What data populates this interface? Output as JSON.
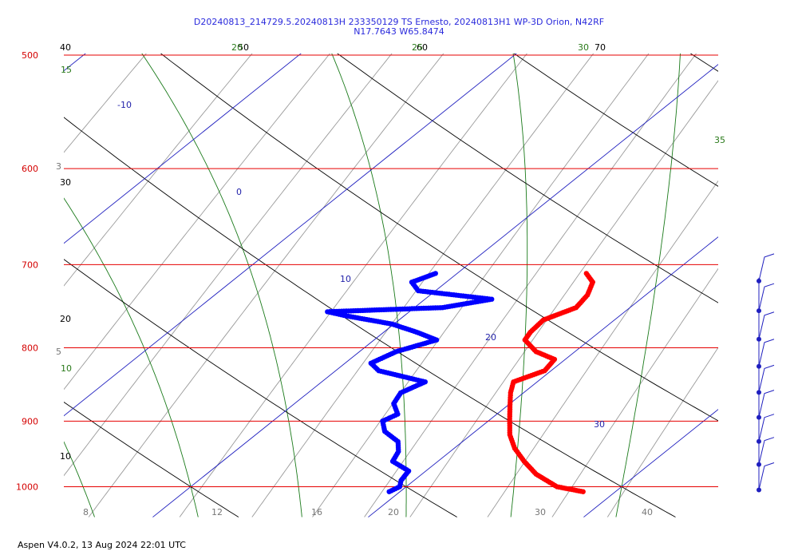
{
  "header": {
    "line1": "D20240813_214729.5.20240813H 233350129 TS Ernesto, 20240813H1 WP-3D Orion, N42RF",
    "line2": "N17.7643 W65.8474"
  },
  "footer": {
    "text": "Aspen V4.0.2, 13 Aug 2024  22:01 UTC"
  },
  "colors": {
    "temperature": "#ff0000",
    "dewpoint": "#0000ff",
    "isobar": "#e60000",
    "isotherm": "#1f1fbf",
    "dry_adiabat": "#000000",
    "moist_adiabat": "#1a7a1a",
    "mixing_ratio": "#9a9a9a",
    "wind_barb": "#1f1fbf"
  },
  "chart_data": {
    "type": "skew-t",
    "pressure_levels": [
      "500",
      "600",
      "700",
      "800",
      "900",
      "1000"
    ],
    "temperature_axis_labels": [
      "8",
      "12",
      "16",
      "20",
      "30",
      "40"
    ],
    "isotherm_labels": [
      "-10",
      "0",
      "10",
      "20",
      "30"
    ],
    "dry_adiabat_labels": [
      "10",
      "20",
      "30",
      "40",
      "50",
      "60",
      "70"
    ],
    "moist_adiabat_labels": [
      "10",
      "15",
      "20",
      "25",
      "30",
      "35"
    ],
    "mixing_ratio_labels": [
      "3",
      "5"
    ],
    "temperature_profile": [
      [
        1008,
        28.5
      ],
      [
        1000,
        27.0
      ],
      [
        980,
        25.3
      ],
      [
        960,
        24.0
      ],
      [
        940,
        22.8
      ],
      [
        920,
        21.8
      ],
      [
        900,
        21.0
      ],
      [
        880,
        20.2
      ],
      [
        860,
        19.4
      ],
      [
        845,
        18.9
      ],
      [
        830,
        19.7
      ],
      [
        815,
        19.5
      ],
      [
        805,
        18.2
      ],
      [
        790,
        17.0
      ],
      [
        780,
        16.8
      ],
      [
        765,
        16.7
      ],
      [
        750,
        17.5
      ],
      [
        735,
        17.3
      ],
      [
        720,
        16.8
      ],
      [
        710,
        16.0
      ]
    ],
    "dewpoint_profile": [
      [
        1008,
        19.5
      ],
      [
        1000,
        19.7
      ],
      [
        990,
        19.4
      ],
      [
        975,
        19.2
      ],
      [
        960,
        17.9
      ],
      [
        945,
        17.6
      ],
      [
        930,
        17.0
      ],
      [
        915,
        15.8
      ],
      [
        900,
        15.1
      ],
      [
        890,
        15.4
      ],
      [
        875,
        14.6
      ],
      [
        860,
        14.3
      ],
      [
        845,
        14.8
      ],
      [
        830,
        12.0
      ],
      [
        820,
        11.2
      ],
      [
        805,
        11.7
      ],
      [
        790,
        12.9
      ],
      [
        780,
        11.5
      ],
      [
        770,
        9.9
      ],
      [
        760,
        7.3
      ],
      [
        755,
        6.2
      ],
      [
        750,
        11.3
      ],
      [
        740,
        13.1
      ],
      [
        730,
        9.2
      ],
      [
        720,
        8.4
      ],
      [
        710,
        9.0
      ]
    ],
    "wind_levels": [
      1000,
      960,
      925,
      890,
      855,
      820,
      785,
      750,
      715
    ],
    "ylim": [
      500,
      1050
    ],
    "xlim": [
      -40,
      40
    ]
  }
}
